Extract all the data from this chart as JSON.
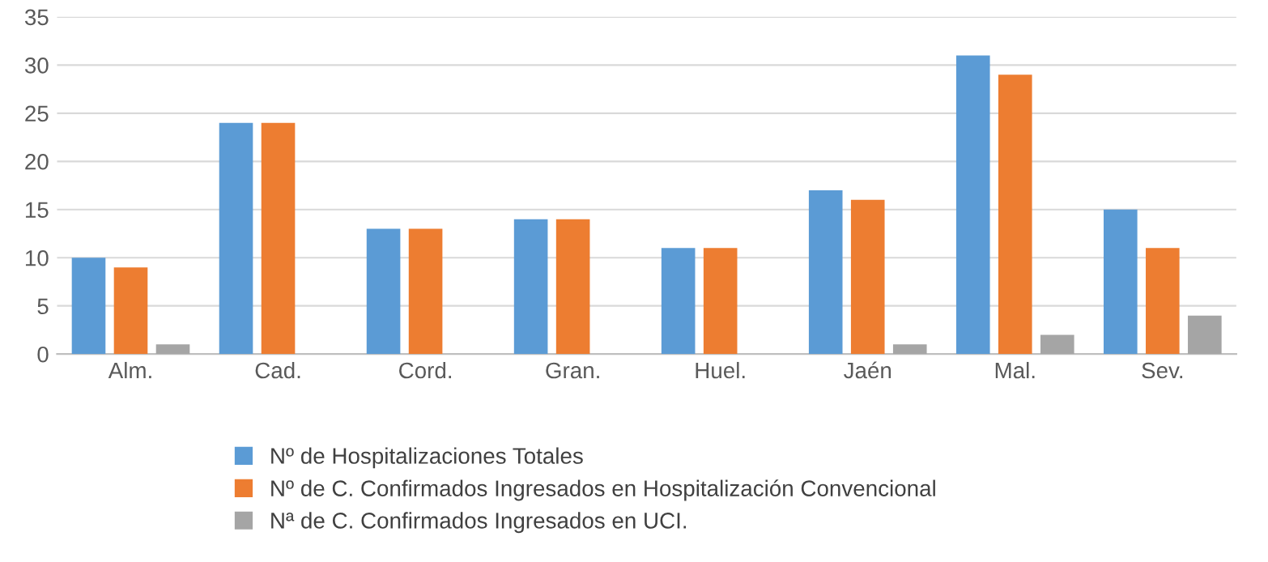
{
  "chart_data": {
    "type": "bar",
    "categories": [
      "Alm.",
      "Cad.",
      "Cord.",
      "Gran.",
      "Huel.",
      "Jaén",
      "Mal.",
      "Sev."
    ],
    "series": [
      {
        "name": "Nº de Hospitalizaciones Totales",
        "color": "#5b9bd5",
        "values": [
          10,
          24,
          13,
          14,
          11,
          17,
          31,
          15
        ]
      },
      {
        "name": "Nº de C. Confirmados Ingresados en Hospitalización Convencional",
        "color": "#ed7d31",
        "values": [
          9,
          24,
          13,
          14,
          11,
          16,
          29,
          11
        ]
      },
      {
        "name": "Nª de C. Confirmados Ingresados en UCI.",
        "color": "#a5a5a5",
        "values": [
          1,
          0,
          0,
          0,
          0,
          1,
          2,
          4
        ]
      }
    ],
    "ylim": [
      0,
      35
    ],
    "yticks": [
      0,
      5,
      10,
      15,
      20,
      25,
      30,
      35
    ],
    "grid": "y",
    "legend": "bottom"
  }
}
